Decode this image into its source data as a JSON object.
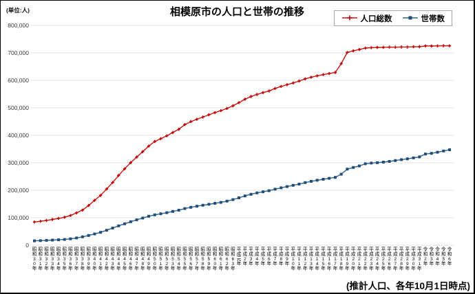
{
  "header": {
    "title": "相模原市の人口と世帯の推移",
    "unit_label": "(単位:人)"
  },
  "legend": {
    "items": [
      {
        "label": "人口総数",
        "color": "#c00000",
        "marker": "plus"
      },
      {
        "label": "世帯数",
        "color": "#1f4e79",
        "marker": "square"
      }
    ]
  },
  "footnote": "(推計人口、各年10月1日時点)",
  "colors": {
    "population_line": "#cc1111",
    "population_marker": "#c00000",
    "households_line": "#2e6086",
    "households_marker": "#1f4e79",
    "gridline": "#e2e2e2"
  },
  "chart_data": {
    "type": "line",
    "title": "相模原市の人口と世帯の推移",
    "unit": "人",
    "note": "(推計人口、各年10月1日時点)",
    "grid": "horizontal-only",
    "legend_position": "top-right",
    "ylim": [
      0,
      800000
    ],
    "y_tick_step": 100000,
    "y_tick_labels_top_to_bottom": [
      "800,000",
      "700,000",
      "600,000",
      "500,000",
      "400,000",
      "300,000",
      "200,000",
      "100,000",
      "0"
    ],
    "x_labels": [
      "昭和30年",
      "昭和31年",
      "昭和32年",
      "昭和33年",
      "昭和34年",
      "昭和35年",
      "昭和36年",
      "昭和37年",
      "昭和38年",
      "昭和39年",
      "昭和40年",
      "昭和41年",
      "昭和42年",
      "昭和43年",
      "昭和44年",
      "昭和45年",
      "昭和46年",
      "昭和47年",
      "昭和48年",
      "昭和49年",
      "昭和50年",
      "昭和51年",
      "昭和52年",
      "昭和53年",
      "昭和54年",
      "昭和55年",
      "昭和56年",
      "昭和57年",
      "昭和58年",
      "昭和59年",
      "昭和60年",
      "昭和61年",
      "昭和62年",
      "昭和63年",
      "平成元年",
      "平成2年",
      "平成3年",
      "平成4年",
      "平成5年",
      "平成6年",
      "平成7年",
      "平成8年",
      "平成9年",
      "平成10年",
      "平成11年",
      "平成12年",
      "平成13年",
      "平成14年",
      "平成15年",
      "平成16年",
      "平成17年",
      "平成18年",
      "平成19年",
      "平成20年",
      "平成21年",
      "平成22年",
      "平成23年",
      "平成24年",
      "平成25年",
      "平成26年",
      "平成27年",
      "平成28年",
      "平成29年",
      "平成30年",
      "平成31年",
      "令和2年",
      "令和3年",
      "令和4年",
      "令和5年",
      "令和6年"
    ],
    "series": [
      {
        "name": "人口総数",
        "marker": "plus",
        "values": [
          84500,
          87000,
          90200,
          93700,
          97700,
          101700,
          108200,
          117700,
          127900,
          144500,
          163400,
          181600,
          204600,
          228300,
          253900,
          278300,
          300400,
          320900,
          340600,
          360700,
          377400,
          387800,
          398200,
          410300,
          422000,
          439300,
          449700,
          458600,
          466600,
          474800,
          482800,
          489800,
          497700,
          507600,
          518900,
          531500,
          541200,
          548800,
          555500,
          561600,
          570600,
          578000,
          584300,
          590500,
          597500,
          605600,
          611400,
          616600,
          621000,
          624700,
          628700,
          661000,
          701600,
          707400,
          712200,
          717500,
          719100,
          719900,
          720200,
          721000,
          720800,
          721600,
          721400,
          722200,
          722600,
          725500,
          725100,
          725400,
          726100,
          725800
        ]
      },
      {
        "name": "世帯数",
        "marker": "square",
        "values": [
          16000,
          16800,
          17700,
          18700,
          19800,
          21000,
          23200,
          26500,
          30500,
          35500,
          41000,
          47000,
          54500,
          62500,
          70500,
          78000,
          85500,
          92500,
          99000,
          105500,
          110500,
          114500,
          118500,
          123000,
          127500,
          133500,
          138000,
          142000,
          145500,
          149000,
          152500,
          156000,
          160500,
          166000,
          172500,
          179500,
          185500,
          190500,
          194500,
          198500,
          204000,
          209000,
          213500,
          218000,
          222500,
          228000,
          232500,
          236500,
          240000,
          243500,
          247000,
          258500,
          277000,
          283000,
          288500,
          296500,
          299000,
          300500,
          302500,
          305000,
          308300,
          311500,
          314500,
          318000,
          321500,
          332000,
          334500,
          338500,
          343000,
          347500
        ]
      }
    ]
  }
}
